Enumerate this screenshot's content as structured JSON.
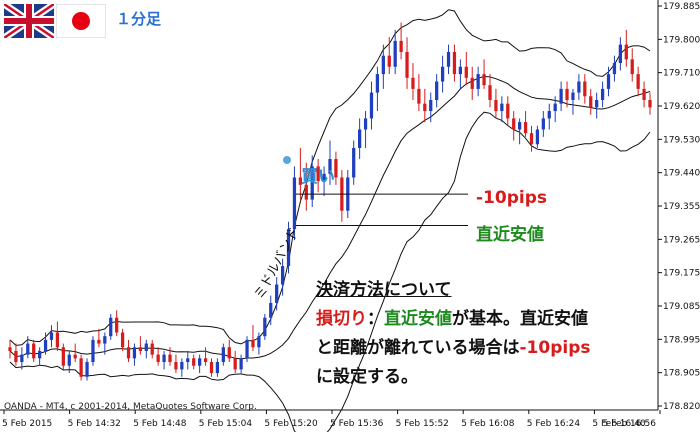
{
  "header": {
    "timeframe_label": "１分足",
    "flags": [
      "uk-flag-icon",
      "japan-flag-icon"
    ]
  },
  "annotations": {
    "buy_label": "買い",
    "stop_offset_label": "-10pips",
    "recent_low_label": "直近安値",
    "middle_band_label": "ミドルバンド"
  },
  "note": {
    "title": "決済方法について",
    "line1_prefix": "損切り",
    "line1_colon": "：",
    "line1_recent_low": "直近安値",
    "line1_rest": "が基本。直近安値",
    "line2_part1": "と距離が離れている場合は",
    "line2_pips": "-10pips",
    "line3": "に設定する。"
  },
  "copyright": "OANDA - MT4, c 2001-2014, MetaQuotes Software Corp.",
  "colors": {
    "bull_candle": "#1f3fbf",
    "bear_candle": "#d81b1b",
    "band_line": "#111111",
    "buy_marker": "#2f8fd6",
    "red_text": "#d81b1b",
    "green_text": "#1e8a1e"
  },
  "chart_data": {
    "type": "candlestick",
    "title": "",
    "y_ticks": [
      "179.885",
      "179.800",
      "179.710",
      "179.620",
      "179.530",
      "179.440",
      "179.355",
      "179.265",
      "179.175",
      "179.085",
      "178.995",
      "178.905",
      "178.820"
    ],
    "x_ticks": [
      "5 Feb 2015",
      "5 Feb 14:32",
      "5 Feb 14:48",
      "5 Feb 15:04",
      "5 Feb 15:20",
      "5 Feb 15:36",
      "5 Feb 15:52",
      "5 Feb 16:08",
      "5 Feb 16:24",
      "5 Feb 16:40",
      "5 Feb 16:56"
    ],
    "ylim": [
      178.79,
      179.89
    ],
    "grid": false,
    "reference_levels": [
      {
        "name": "-10pips",
        "value": 179.375
      },
      {
        "name": "直近安値",
        "value": 179.29
      }
    ],
    "candles": [
      [
        178.96,
        178.98,
        178.93,
        178.95
      ],
      [
        178.95,
        178.97,
        178.91,
        178.92
      ],
      [
        178.92,
        178.96,
        178.9,
        178.94
      ],
      [
        178.94,
        178.99,
        178.93,
        178.97
      ],
      [
        178.97,
        178.98,
        178.92,
        178.93
      ],
      [
        178.93,
        178.96,
        178.91,
        178.95
      ],
      [
        178.95,
        179.0,
        178.94,
        178.98
      ],
      [
        178.98,
        179.02,
        178.96,
        179.0
      ],
      [
        179.0,
        179.03,
        178.95,
        178.96
      ],
      [
        178.96,
        178.97,
        178.9,
        178.91
      ],
      [
        178.91,
        178.95,
        178.89,
        178.94
      ],
      [
        178.94,
        178.97,
        178.92,
        178.93
      ],
      [
        178.93,
        178.94,
        178.87,
        178.88
      ],
      [
        178.88,
        178.93,
        178.87,
        178.92
      ],
      [
        178.92,
        178.99,
        178.91,
        178.98
      ],
      [
        178.98,
        179.01,
        178.96,
        178.97
      ],
      [
        178.97,
        179.0,
        178.94,
        178.99
      ],
      [
        178.99,
        179.05,
        178.98,
        179.04
      ],
      [
        179.04,
        179.06,
        178.99,
        179.0
      ],
      [
        179.0,
        179.01,
        178.95,
        178.96
      ],
      [
        178.96,
        178.98,
        178.92,
        178.93
      ],
      [
        178.93,
        178.97,
        178.91,
        178.96
      ],
      [
        178.96,
        178.99,
        178.94,
        178.95
      ],
      [
        178.95,
        178.98,
        178.93,
        178.97
      ],
      [
        178.97,
        178.98,
        178.93,
        178.94
      ],
      [
        178.94,
        178.96,
        178.91,
        178.92
      ],
      [
        178.92,
        178.95,
        178.9,
        178.94
      ],
      [
        178.94,
        178.96,
        178.91,
        178.92
      ],
      [
        178.92,
        178.94,
        178.89,
        178.9
      ],
      [
        178.9,
        178.93,
        178.88,
        178.92
      ],
      [
        178.92,
        178.95,
        178.9,
        178.93
      ],
      [
        178.93,
        178.94,
        178.9,
        178.91
      ],
      [
        178.91,
        178.94,
        178.89,
        178.93
      ],
      [
        178.93,
        178.96,
        178.91,
        178.92
      ],
      [
        178.92,
        178.93,
        178.88,
        178.89
      ],
      [
        178.89,
        178.93,
        178.88,
        178.92
      ],
      [
        178.92,
        178.97,
        178.91,
        178.96
      ],
      [
        178.96,
        178.98,
        178.92,
        178.93
      ],
      [
        178.93,
        178.95,
        178.89,
        178.9
      ],
      [
        178.9,
        178.94,
        178.89,
        178.93
      ],
      [
        178.93,
        178.99,
        178.92,
        178.98
      ],
      [
        178.98,
        179.02,
        178.95,
        178.96
      ],
      [
        178.96,
        179.0,
        178.94,
        178.99
      ],
      [
        178.99,
        179.05,
        178.98,
        179.04
      ],
      [
        179.04,
        179.1,
        179.02,
        179.08
      ],
      [
        179.08,
        179.15,
        179.06,
        179.13
      ],
      [
        179.13,
        179.2,
        179.1,
        179.18
      ],
      [
        179.18,
        179.3,
        179.16,
        179.28
      ],
      [
        179.28,
        179.45,
        179.25,
        179.42
      ],
      [
        179.42,
        179.5,
        179.36,
        179.4
      ],
      [
        179.4,
        179.46,
        179.33,
        179.36
      ],
      [
        179.36,
        179.48,
        179.34,
        179.45
      ],
      [
        179.45,
        179.47,
        179.38,
        179.41
      ],
      [
        179.41,
        179.45,
        179.37,
        179.43
      ],
      [
        179.43,
        179.52,
        179.4,
        179.47
      ],
      [
        179.47,
        179.49,
        179.4,
        179.42
      ],
      [
        179.42,
        179.44,
        179.3,
        179.33
      ],
      [
        179.33,
        179.44,
        179.31,
        179.42
      ],
      [
        179.42,
        179.52,
        179.4,
        179.5
      ],
      [
        179.5,
        179.58,
        179.47,
        179.55
      ],
      [
        179.55,
        179.6,
        179.5,
        179.58
      ],
      [
        179.58,
        179.68,
        179.55,
        179.65
      ],
      [
        179.65,
        179.72,
        179.6,
        179.7
      ],
      [
        179.7,
        179.78,
        179.66,
        179.75
      ],
      [
        179.75,
        179.8,
        179.7,
        179.72
      ],
      [
        179.72,
        179.82,
        179.7,
        179.79
      ],
      [
        179.79,
        179.84,
        179.74,
        179.76
      ],
      [
        179.76,
        179.8,
        179.66,
        179.69
      ],
      [
        179.69,
        179.73,
        179.63,
        179.66
      ],
      [
        179.66,
        179.7,
        179.6,
        179.62
      ],
      [
        179.62,
        179.66,
        179.57,
        179.6
      ],
      [
        179.6,
        179.65,
        179.57,
        179.63
      ],
      [
        179.63,
        179.7,
        179.61,
        179.68
      ],
      [
        179.68,
        179.75,
        179.65,
        179.72
      ],
      [
        179.72,
        179.78,
        179.7,
        179.76
      ],
      [
        179.76,
        179.78,
        179.68,
        179.7
      ],
      [
        179.7,
        179.74,
        179.66,
        179.72
      ],
      [
        179.72,
        179.76,
        179.67,
        179.69
      ],
      [
        179.69,
        179.72,
        179.63,
        179.66
      ],
      [
        179.66,
        179.72,
        179.64,
        179.7
      ],
      [
        179.7,
        179.74,
        179.66,
        179.67
      ],
      [
        179.67,
        179.7,
        179.61,
        179.63
      ],
      [
        179.63,
        179.66,
        179.58,
        179.6
      ],
      [
        179.6,
        179.64,
        179.57,
        179.62
      ],
      [
        179.62,
        179.64,
        179.56,
        179.58
      ],
      [
        179.58,
        179.6,
        179.52,
        179.55
      ],
      [
        179.55,
        179.58,
        179.51,
        179.57
      ],
      [
        179.57,
        179.6,
        179.53,
        179.54
      ],
      [
        179.54,
        179.56,
        179.49,
        179.51
      ],
      [
        179.51,
        179.56,
        179.5,
        179.55
      ],
      [
        179.55,
        179.6,
        179.53,
        179.58
      ],
      [
        179.58,
        179.62,
        179.55,
        179.6
      ],
      [
        179.6,
        179.64,
        179.57,
        179.62
      ],
      [
        179.62,
        179.68,
        179.6,
        179.66
      ],
      [
        179.66,
        179.68,
        179.61,
        179.63
      ],
      [
        179.63,
        179.66,
        179.59,
        179.65
      ],
      [
        179.65,
        179.7,
        179.63,
        179.68
      ],
      [
        179.68,
        179.7,
        179.62,
        179.64
      ],
      [
        179.64,
        179.66,
        179.59,
        179.61
      ],
      [
        179.61,
        179.65,
        179.58,
        179.63
      ],
      [
        179.63,
        179.68,
        179.61,
        179.66
      ],
      [
        179.66,
        179.72,
        179.64,
        179.7
      ],
      [
        179.7,
        179.75,
        179.68,
        179.73
      ],
      [
        179.73,
        179.8,
        179.71,
        179.78
      ],
      [
        179.78,
        179.82,
        179.72,
        179.74
      ],
      [
        179.74,
        179.77,
        179.68,
        179.7
      ],
      [
        179.7,
        179.72,
        179.64,
        179.66
      ],
      [
        179.66,
        179.68,
        179.61,
        179.63
      ],
      [
        179.63,
        179.65,
        179.59,
        179.61
      ]
    ]
  }
}
